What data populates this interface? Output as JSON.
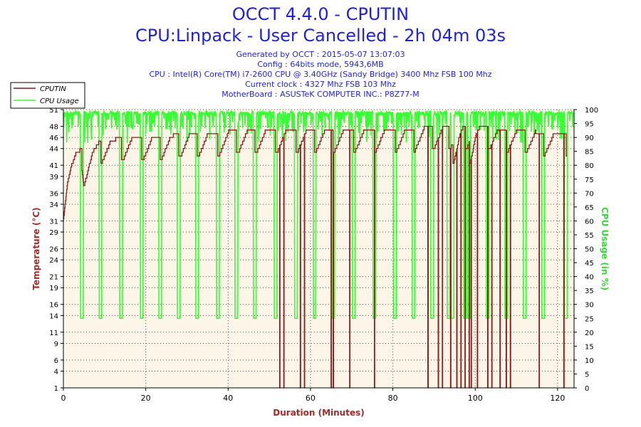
{
  "header": {
    "title": "OCCT 4.4.0 - CPUTIN",
    "subtitle": "CPU:Linpack - User Cancelled - 2h 04m 03s",
    "info": [
      "Generated by OCCT : 2015-05-07 13:07:03",
      "Config : 64bits mode, 5943,6MB",
      "CPU : Intel(R) Core(TM) i7-2600 CPU @ 3.40GHz (Sandy Bridge) 3400 Mhz FSB 100 Mhz",
      "Current clock : 4327 Mhz FSB 103 Mhz",
      "MotherBoard : ASUSTeK COMPUTER INC.: P8Z77-M"
    ]
  },
  "colors": {
    "temperature": "#8b1a1a",
    "cpu_usage": "#33ff33",
    "axis_left_label": "#a52a2a",
    "axis_right_label": "#33dd33",
    "xlabel": "#a52a2a",
    "title": "#1f1fe6",
    "plot_bg": "#fdf6e8"
  },
  "chart_data": {
    "type": "line",
    "xlabel": "Duration (Minutes)",
    "ylabel": "Temperature (°C)",
    "y2label": "CPU Usage (in %)",
    "xlim": [
      0,
      124
    ],
    "ylim": [
      1,
      51
    ],
    "y2lim": [
      0,
      100
    ],
    "x_ticks": [
      0,
      20,
      40,
      60,
      80,
      100,
      120
    ],
    "y_ticks": [
      1,
      4,
      6,
      9,
      11,
      14,
      16,
      19,
      21,
      24,
      26,
      29,
      31,
      34,
      36,
      39,
      41,
      44,
      46,
      48,
      51
    ],
    "y_top_tick_label": "51",
    "y2_ticks": [
      0,
      5,
      10,
      15,
      20,
      25,
      30,
      35,
      40,
      45,
      50,
      55,
      60,
      65,
      70,
      75,
      80,
      85,
      90,
      95,
      100
    ],
    "grid": true,
    "legend_position": "top-left",
    "series": [
      {
        "name": "CPUTIN",
        "axis": "left",
        "description_points": [
          [
            0,
            31
          ],
          [
            1,
            38
          ],
          [
            2,
            41
          ],
          [
            3,
            43
          ],
          [
            4.5,
            44
          ],
          [
            5,
            41
          ],
          [
            9,
            45.5
          ],
          [
            20,
            46
          ],
          [
            40,
            47
          ],
          [
            60,
            47.5
          ],
          [
            80,
            47.5
          ],
          [
            100,
            48
          ],
          [
            122,
            46.5
          ]
        ],
        "drops_to_min_at": [
          52.5,
          53.5,
          57.5,
          58.5,
          65,
          65.5,
          69.5,
          75.5,
          88.5,
          91,
          92,
          94,
          95.5,
          96.5,
          97.5,
          98.5,
          99,
          100.5,
          103,
          104,
          106,
          107.5,
          108.5,
          115.5,
          121.5
        ]
      },
      {
        "name": "CPU Usage",
        "axis": "right",
        "baseline": 99,
        "dip_value": 25,
        "dips_at": [
          4.5,
          9,
          14,
          19,
          23.5,
          28,
          32.5,
          37.5,
          42,
          46.5,
          51.5,
          56.5,
          61,
          65.5,
          70.5,
          75.5,
          80.5,
          85,
          89.5,
          93.5,
          94.5,
          97.5,
          98.5,
          103,
          107.5,
          112,
          116.5,
          122
        ]
      }
    ]
  }
}
